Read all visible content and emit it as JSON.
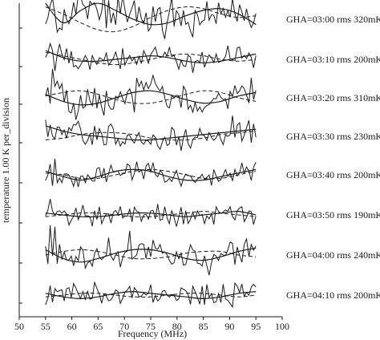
{
  "chart_data": {
    "type": "line",
    "title": "",
    "xlabel": "Frequency (MHz)",
    "ylabel": "temperature   1.00 K  per_division",
    "xlim": [
      50,
      100
    ],
    "xticks": [
      50,
      55,
      60,
      65,
      70,
      75,
      80,
      85,
      90,
      95,
      100
    ],
    "y_units_per_division": 1.0,
    "grid": false,
    "legend": "none",
    "panels": [
      {
        "label": "GHA=03:00 rms 320mK",
        "rms_mK": 320,
        "solid_fit": [
          0.9,
          -0.2,
          0.5,
          0.9,
          0.5,
          0.0,
          -0.3,
          -0.2,
          0.2,
          0.5,
          0.6,
          0.3,
          -0.3
        ],
        "dashed_fit": [
          0.7,
          0.3,
          -0.2,
          -0.6,
          -0.7,
          -0.4,
          0.1,
          0.5,
          0.7,
          0.6,
          0.3,
          0.1,
          0.2
        ]
      },
      {
        "label": "GHA=03:10 rms 200mK",
        "rms_mK": 200,
        "solid_fit": [
          0.5,
          0.1,
          -0.1,
          -0.1,
          0.0,
          0.1,
          0.2,
          0.1,
          -0.1,
          -0.2,
          -0.1,
          0.1,
          0.3
        ],
        "dashed_fit": [
          0.4,
          0.2,
          0.0,
          -0.2,
          -0.3,
          -0.2,
          0.0,
          0.2,
          0.3,
          0.2,
          0.0,
          -0.1,
          0.0
        ]
      },
      {
        "label": "GHA=03:20 rms 310mK",
        "rms_mK": 310,
        "solid_fit": [
          0.2,
          -0.2,
          -0.4,
          -0.3,
          0.0,
          0.3,
          0.4,
          0.2,
          -0.1,
          -0.3,
          -0.2,
          0.1,
          0.3
        ],
        "dashed_fit": [
          0.1,
          0.3,
          0.4,
          0.2,
          -0.1,
          -0.3,
          -0.3,
          -0.1,
          0.2,
          0.4,
          0.3,
          0.0,
          -0.2
        ]
      },
      {
        "label": "GHA=03:30 rms 230mK",
        "rms_mK": 230,
        "solid_fit": [
          0.6,
          0.3,
          0.1,
          0.0,
          -0.1,
          -0.2,
          -0.2,
          -0.1,
          0.0,
          0.1,
          0.2,
          0.3,
          0.4
        ],
        "dashed_fit": [
          -0.2,
          -0.1,
          0.1,
          0.2,
          0.2,
          0.1,
          -0.1,
          -0.2,
          -0.2,
          -0.1,
          0.1,
          0.2,
          0.3
        ]
      },
      {
        "label": "GHA=03:40 rms 200mK",
        "rms_mK": 200,
        "solid_fit": [
          0.2,
          -0.1,
          -0.3,
          -0.1,
          0.2,
          0.3,
          0.2,
          -0.1,
          -0.3,
          -0.3,
          -0.1,
          0.1,
          0.3
        ],
        "dashed_fit": [
          0.1,
          0.0,
          -0.2,
          -0.2,
          0.0,
          0.2,
          0.3,
          0.2,
          0.0,
          -0.2,
          -0.2,
          0.0,
          0.2
        ]
      },
      {
        "label": "GHA=03:50 rms 190mK",
        "rms_mK": 190,
        "solid_fit": [
          0.1,
          0.0,
          -0.1,
          -0.1,
          0.0,
          0.1,
          0.1,
          0.0,
          -0.1,
          0.0,
          0.1,
          0.2,
          0.0
        ],
        "dashed_fit": [
          -0.1,
          0.0,
          0.1,
          0.1,
          0.0,
          -0.1,
          -0.1,
          0.0,
          0.1,
          0.2,
          0.1,
          0.0,
          -0.1
        ]
      },
      {
        "label": "GHA=04:00 rms 240mK",
        "rms_mK": 240,
        "solid_fit": [
          0.3,
          -0.2,
          -0.4,
          -0.2,
          0.1,
          0.3,
          0.3,
          0.1,
          -0.2,
          -0.3,
          -0.1,
          0.2,
          0.4
        ],
        "dashed_fit": [
          0.0,
          0.2,
          0.3,
          0.2,
          0.0,
          -0.2,
          -0.2,
          -0.1,
          0.1,
          0.2,
          0.2,
          0.0,
          -0.1
        ]
      },
      {
        "label": "GHA=04:10 rms 200mK",
        "rms_mK": 200,
        "solid_fit": [
          0.1,
          -0.1,
          -0.2,
          -0.1,
          0.1,
          0.2,
          0.1,
          0.0,
          -0.1,
          -0.2,
          -0.1,
          0.1,
          0.2
        ],
        "dashed_fit": [
          -0.1,
          0.0,
          0.1,
          0.1,
          0.0,
          -0.1,
          -0.1,
          0.0,
          0.1,
          0.1,
          0.0,
          -0.1,
          0.0
        ]
      }
    ],
    "fit_x": [
      55,
      58.33,
      61.67,
      65,
      68.33,
      71.67,
      75,
      78.33,
      81.67,
      85,
      88.33,
      91.67,
      95
    ]
  }
}
